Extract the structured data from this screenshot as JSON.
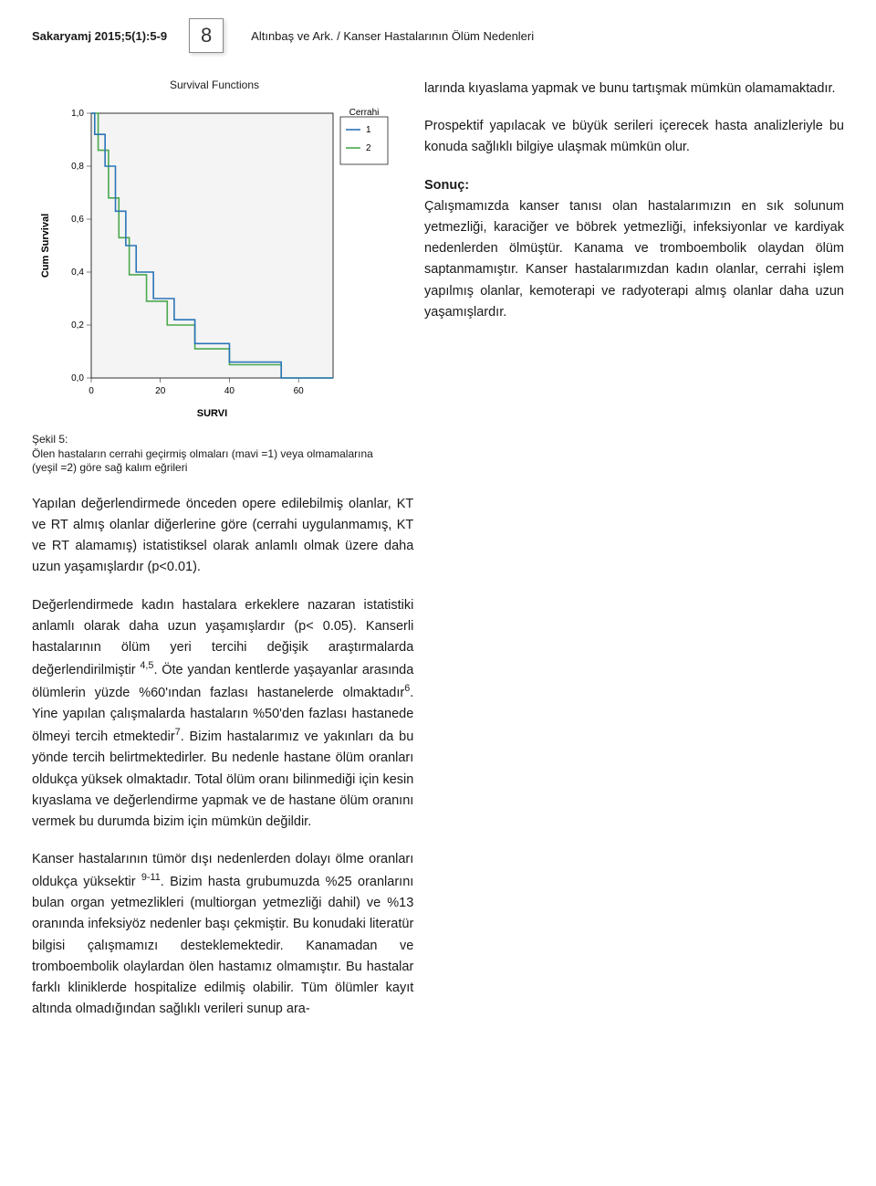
{
  "header": {
    "journal": "Sakaryamj 2015;5(1):5-9",
    "page_number": "8",
    "running_title": "Altınbaş ve Ark. / Kanser Hastalarının Ölüm Nedenleri"
  },
  "figure": {
    "chart_title": "Survival Functions",
    "y_axis_label": "Cum Survival",
    "x_axis_label": "SURVI",
    "legend_title": "Cerrahi",
    "legend_items": [
      "1",
      "2"
    ],
    "colors": {
      "series1": "#2a74b8",
      "series2": "#49a84d",
      "axis": "#000000",
      "background": "#f4f4f4"
    },
    "y_ticks": [
      "0,0",
      "0,2",
      "0,4",
      "0,6",
      "0,8",
      "1,0"
    ],
    "x_ticks": [
      "0",
      "20",
      "40",
      "60"
    ],
    "ylim": [
      0,
      1.0
    ],
    "xlim": [
      0,
      70
    ],
    "y_tick_vals": [
      0,
      0.2,
      0.4,
      0.6,
      0.8,
      1.0
    ],
    "x_tick_vals": [
      0,
      20,
      40,
      60
    ],
    "series1_points": [
      [
        0,
        1.0
      ],
      [
        1,
        1.0
      ],
      [
        1,
        0.92
      ],
      [
        4,
        0.92
      ],
      [
        4,
        0.8
      ],
      [
        7,
        0.8
      ],
      [
        7,
        0.63
      ],
      [
        10,
        0.63
      ],
      [
        10,
        0.5
      ],
      [
        13,
        0.5
      ],
      [
        13,
        0.4
      ],
      [
        18,
        0.4
      ],
      [
        18,
        0.3
      ],
      [
        24,
        0.3
      ],
      [
        24,
        0.22
      ],
      [
        30,
        0.22
      ],
      [
        30,
        0.13
      ],
      [
        40,
        0.13
      ],
      [
        40,
        0.06
      ],
      [
        55,
        0.06
      ],
      [
        55,
        0.0
      ],
      [
        70,
        0.0
      ]
    ],
    "series2_points": [
      [
        0,
        1.0
      ],
      [
        2,
        1.0
      ],
      [
        2,
        0.86
      ],
      [
        5,
        0.86
      ],
      [
        5,
        0.68
      ],
      [
        8,
        0.68
      ],
      [
        8,
        0.53
      ],
      [
        11,
        0.53
      ],
      [
        11,
        0.39
      ],
      [
        16,
        0.39
      ],
      [
        16,
        0.29
      ],
      [
        22,
        0.29
      ],
      [
        22,
        0.2
      ],
      [
        30,
        0.2
      ],
      [
        30,
        0.11
      ],
      [
        40,
        0.11
      ],
      [
        40,
        0.05
      ],
      [
        55,
        0.05
      ],
      [
        55,
        0.0
      ],
      [
        70,
        0.0
      ]
    ],
    "caption_title": "Şekil 5:",
    "caption_body": "Ölen hastaların cerrahi geçirmiş olmaları (mavi =1) veya olmamalarına (yeşil =2) göre sağ kalım eğrileri"
  },
  "right_col": {
    "p1": "larında kıyaslama yapmak ve bunu tartışmak mümkün olamamaktadır.",
    "p2": "Prospektif yapılacak ve büyük serileri içerecek hasta analizleriyle bu konuda sağlıklı bilgiye ulaşmak mümkün olur.",
    "sonuc_label": "Sonuç:",
    "sonuc_body": "Çalışmamızda kanser tanısı olan hastalarımızın en sık solunum yetmezliği, karaciğer ve böbrek yetmezliği, infeksiyonlar ve kardiyak nedenlerden ölmüştür. Kanama ve tromboembolik olaydan ölüm saptanmamıştır. Kanser hastalarımızdan kadın olanlar, cerrahi işlem yapılmış olanlar, kemoterapi ve radyoterapi almış olanlar daha uzun yaşamışlardır."
  },
  "lower": {
    "p1": "Yapılan değerlendirmede önceden opere edilebilmiş olanlar, KT ve RT almış olanlar diğerlerine göre (cerrahi uygulanmamış, KT ve RT alamamış) istatistiksel olarak anlamlı olmak üzere daha uzun yaşamışlardır (p<0.01).",
    "p2": "Değerlendirmede kadın hastalara erkeklere nazaran istatistiki anlamlı olarak daha uzun yaşamışlardır (p< 0.05). Kanserli hastalarının ölüm yeri tercihi değişik araştırmalarda değerlendirilmiştir 4,5. Öte yandan kentlerde yaşayanlar arasında ölümlerin yüzde %60'ından fazlası hastanelerde olmaktadır6. Yine yapılan çalışmalarda hastaların %50'den fazlası hastanede ölmeyi tercih etmektedir7. Bizim hastalarımız ve yakınları da bu yönde tercih belirtmektedirler. Bu nedenle hastane ölüm oranları oldukça yüksek olmaktadır. Total ölüm oranı bilinmediği için kesin kıyaslama ve değerlendirme yapmak ve de hastane ölüm oranını vermek bu durumda bizim için mümkün değildir.",
    "p3": "Kanser hastalarının tümör dışı nedenlerden dolayı ölme oranları oldukça yüksektir 9-11. Bizim hasta grubumuzda %25 oranlarını bulan organ yetmezlikleri (multiorgan yetmezliği dahil) ve %13 oranında infeksiyöz nedenler başı çekmiştir. Bu konudaki literatür bilgisi çalışmamızı desteklemektedir. Kanamadan ve tromboembolik olaylardan ölen hastamız olmamıştır. Bu hastalar farklı kliniklerde hospitalize edilmiş olabilir. Tüm ölümler kayıt altında olmadığından sağlıklı verileri sunup ara-"
  }
}
